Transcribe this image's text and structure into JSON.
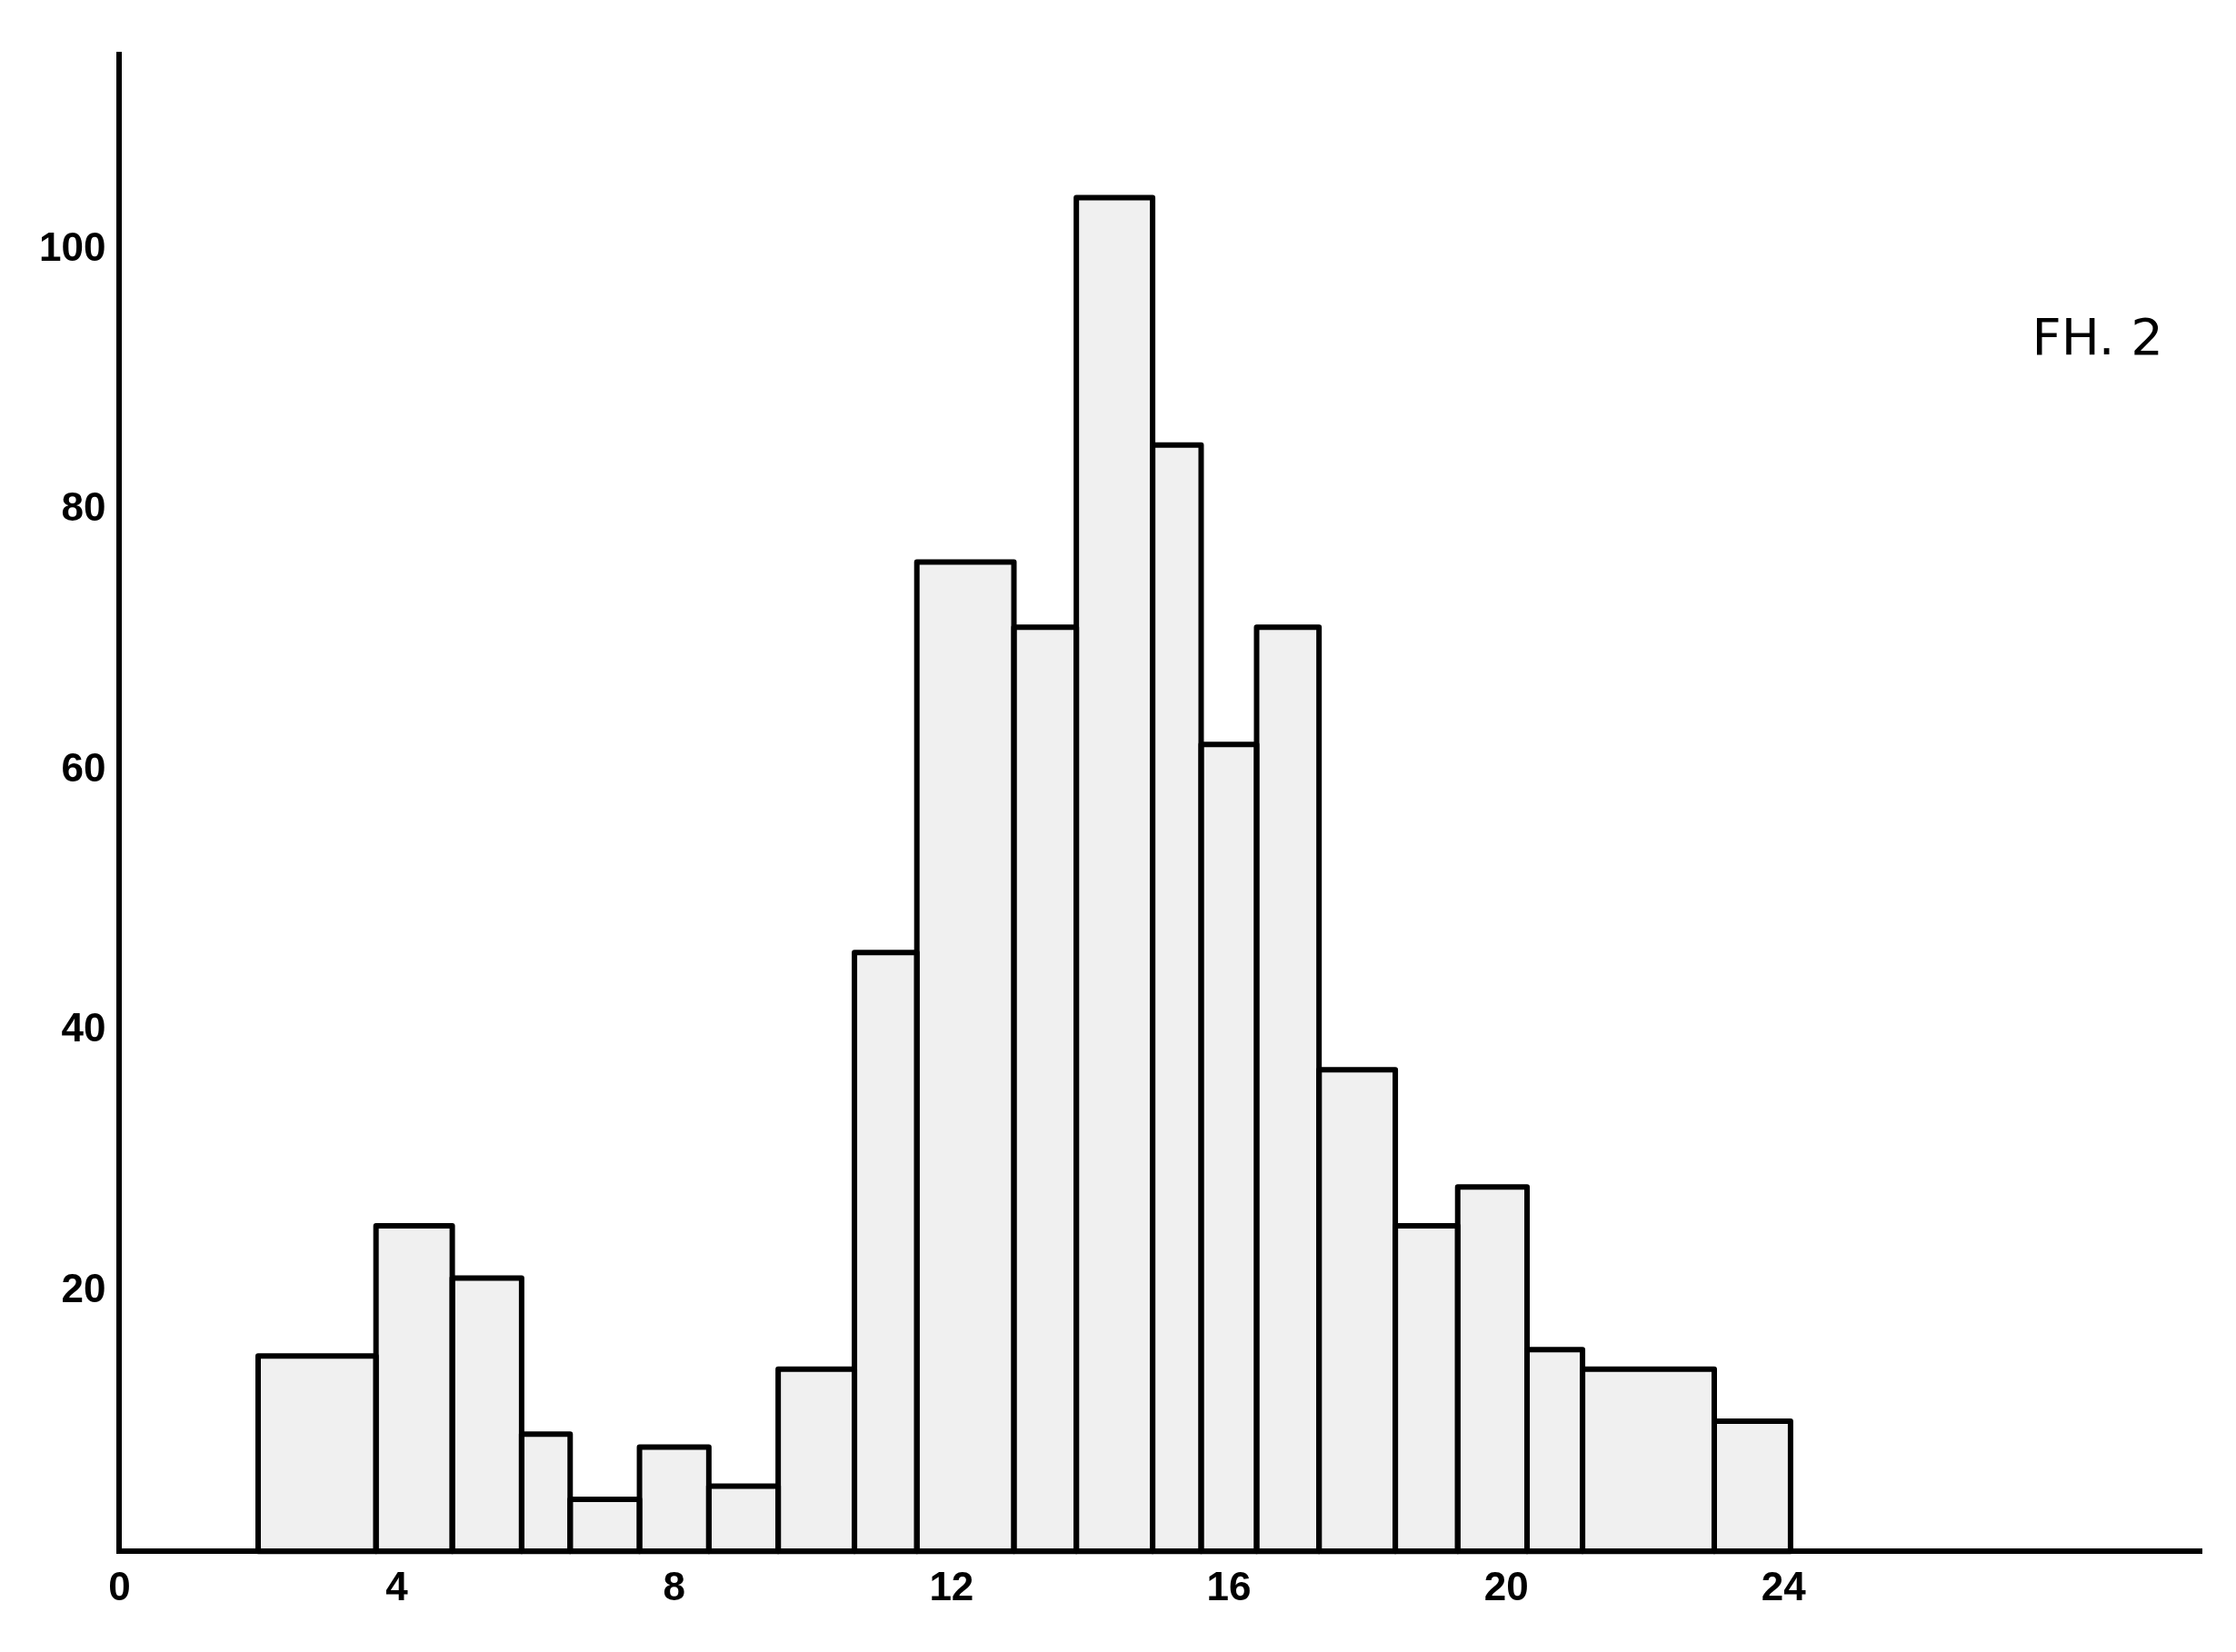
{
  "chart_data": {
    "type": "histogram",
    "annotations": [
      "FH. 2"
    ],
    "bins": [
      2,
      3.7,
      4.8,
      5.8,
      6.5,
      7.5,
      8.5,
      9.5,
      10.6,
      11.5,
      12.9,
      13.8,
      14.9,
      15.6,
      16.4,
      17.3,
      18.4,
      19.3,
      20.3,
      21.1,
      23,
      24.1
    ],
    "values": [
      15,
      25,
      21,
      9,
      4,
      8,
      5,
      14,
      46,
      76,
      71,
      104,
      85,
      62,
      71,
      37,
      25,
      28,
      15.5,
      14,
      10
    ],
    "color": "#000000",
    "xlim": [
      0,
      30
    ],
    "xticks": [
      0,
      4,
      8,
      12,
      16,
      20,
      24
    ],
    "ylim": [
      0,
      115
    ],
    "yticks": [
      20,
      40,
      60,
      80,
      100
    ],
    "grid": false,
    "legend": false
  }
}
